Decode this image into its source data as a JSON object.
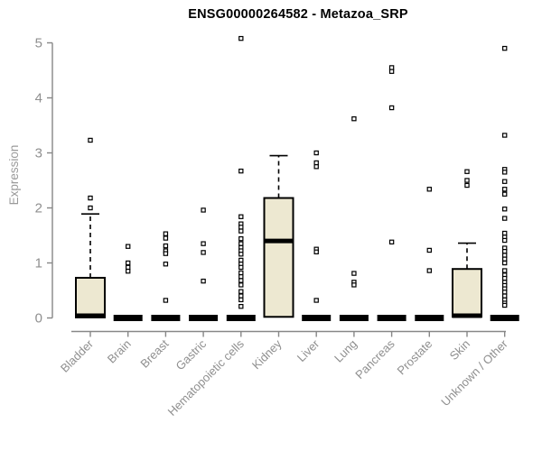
{
  "chart_data": {
    "type": "boxplot",
    "title": "ENSG00000264582 - Metazoa_SRP",
    "ylabel": "Expression",
    "xlabel": "",
    "ylim": [
      0,
      5
    ],
    "yticks": [
      "0",
      "1",
      "2",
      "3",
      "4",
      "5"
    ],
    "grid": false,
    "legend": "none",
    "categories": [
      "Bladder",
      "Brain",
      "Breast",
      "Gastric",
      "Hematopoietic cells",
      "Kidney",
      "Liver",
      "Lung",
      "Pancreas",
      "Prostate",
      "Skin",
      "Unknown / Other"
    ],
    "boxes": [
      {
        "category": "Bladder",
        "q1": 0.01,
        "median": 0.04,
        "q3": 0.73,
        "whisker_low": 0.01,
        "whisker_high": 1.89,
        "outliers": [
          3.23,
          2.18,
          2.0
        ]
      },
      {
        "category": "Brain",
        "q1": 0,
        "median": 0.01,
        "q3": 0.02,
        "whisker_low": 0,
        "whisker_high": 0.02,
        "outliers": [
          1.3,
          1.0,
          0.92,
          0.85
        ]
      },
      {
        "category": "Breast",
        "q1": 0,
        "median": 0.01,
        "q3": 0.02,
        "whisker_low": 0,
        "whisker_high": 0.02,
        "outliers": [
          1.53,
          1.45,
          1.31,
          1.22,
          1.17,
          0.98,
          0.32
        ]
      },
      {
        "category": "Gastric",
        "q1": 0,
        "median": 0.01,
        "q3": 0.02,
        "whisker_low": 0,
        "whisker_high": 0.02,
        "outliers": [
          1.96,
          1.35,
          1.19,
          0.67
        ]
      },
      {
        "category": "Hematopoietic cells",
        "q1": 0,
        "median": 0.01,
        "q3": 0.02,
        "whisker_low": 0,
        "whisker_high": 0.02,
        "outliers": [
          5.08,
          2.67,
          1.84,
          1.71,
          1.65,
          1.58,
          1.44,
          1.35,
          1.28,
          1.22,
          1.16,
          1.05,
          0.98,
          0.92,
          0.82,
          0.75,
          0.68,
          0.6,
          0.48,
          0.4,
          0.33,
          0.21
        ]
      },
      {
        "category": "Kidney",
        "q1": 0.02,
        "median": 1.4,
        "q3": 2.18,
        "whisker_low": 0.02,
        "whisker_high": 2.95,
        "outliers": []
      },
      {
        "category": "Liver",
        "q1": 0,
        "median": 0.01,
        "q3": 0.02,
        "whisker_low": 0,
        "whisker_high": 0.02,
        "outliers": [
          3.0,
          2.82,
          2.75,
          1.25,
          1.2,
          0.32
        ]
      },
      {
        "category": "Lung",
        "q1": 0,
        "median": 0.01,
        "q3": 0.02,
        "whisker_low": 0,
        "whisker_high": 0.02,
        "outliers": [
          3.62,
          0.81,
          0.65,
          0.6
        ]
      },
      {
        "category": "Pancreas",
        "q1": 0,
        "median": 0.01,
        "q3": 0.02,
        "whisker_low": 0,
        "whisker_high": 0.02,
        "outliers": [
          4.55,
          4.48,
          3.82,
          1.38
        ]
      },
      {
        "category": "Prostate",
        "q1": 0,
        "median": 0.01,
        "q3": 0.02,
        "whisker_low": 0,
        "whisker_high": 0.02,
        "outliers": [
          2.34,
          1.23,
          0.86
        ]
      },
      {
        "category": "Skin",
        "q1": 0.02,
        "median": 0.04,
        "q3": 0.89,
        "whisker_low": 0.02,
        "whisker_high": 1.36,
        "outliers": [
          2.66,
          2.5,
          2.41
        ]
      },
      {
        "category": "Unknown / Other",
        "q1": 0,
        "median": 0.01,
        "q3": 0.02,
        "whisker_low": 0,
        "whisker_high": 0.02,
        "outliers": [
          4.9,
          3.32,
          2.7,
          2.65,
          2.48,
          2.34,
          2.25,
          1.98,
          1.81,
          1.54,
          1.47,
          1.41,
          1.27,
          1.21,
          1.14,
          1.07,
          1.0,
          0.86,
          0.78,
          0.72,
          0.65,
          0.59,
          0.53,
          0.47,
          0.4,
          0.33,
          0.27,
          0.23
        ]
      }
    ],
    "colors": {
      "box_fill": "#ede8d1",
      "box_stroke": "#000000",
      "median": "#000000",
      "outlier_stroke": "#000000",
      "outlier_fill": "#ffffff",
      "axis": "#878787",
      "tick_label": "#8f8f8f",
      "title": "#000000",
      "background": "#ffffff"
    }
  }
}
